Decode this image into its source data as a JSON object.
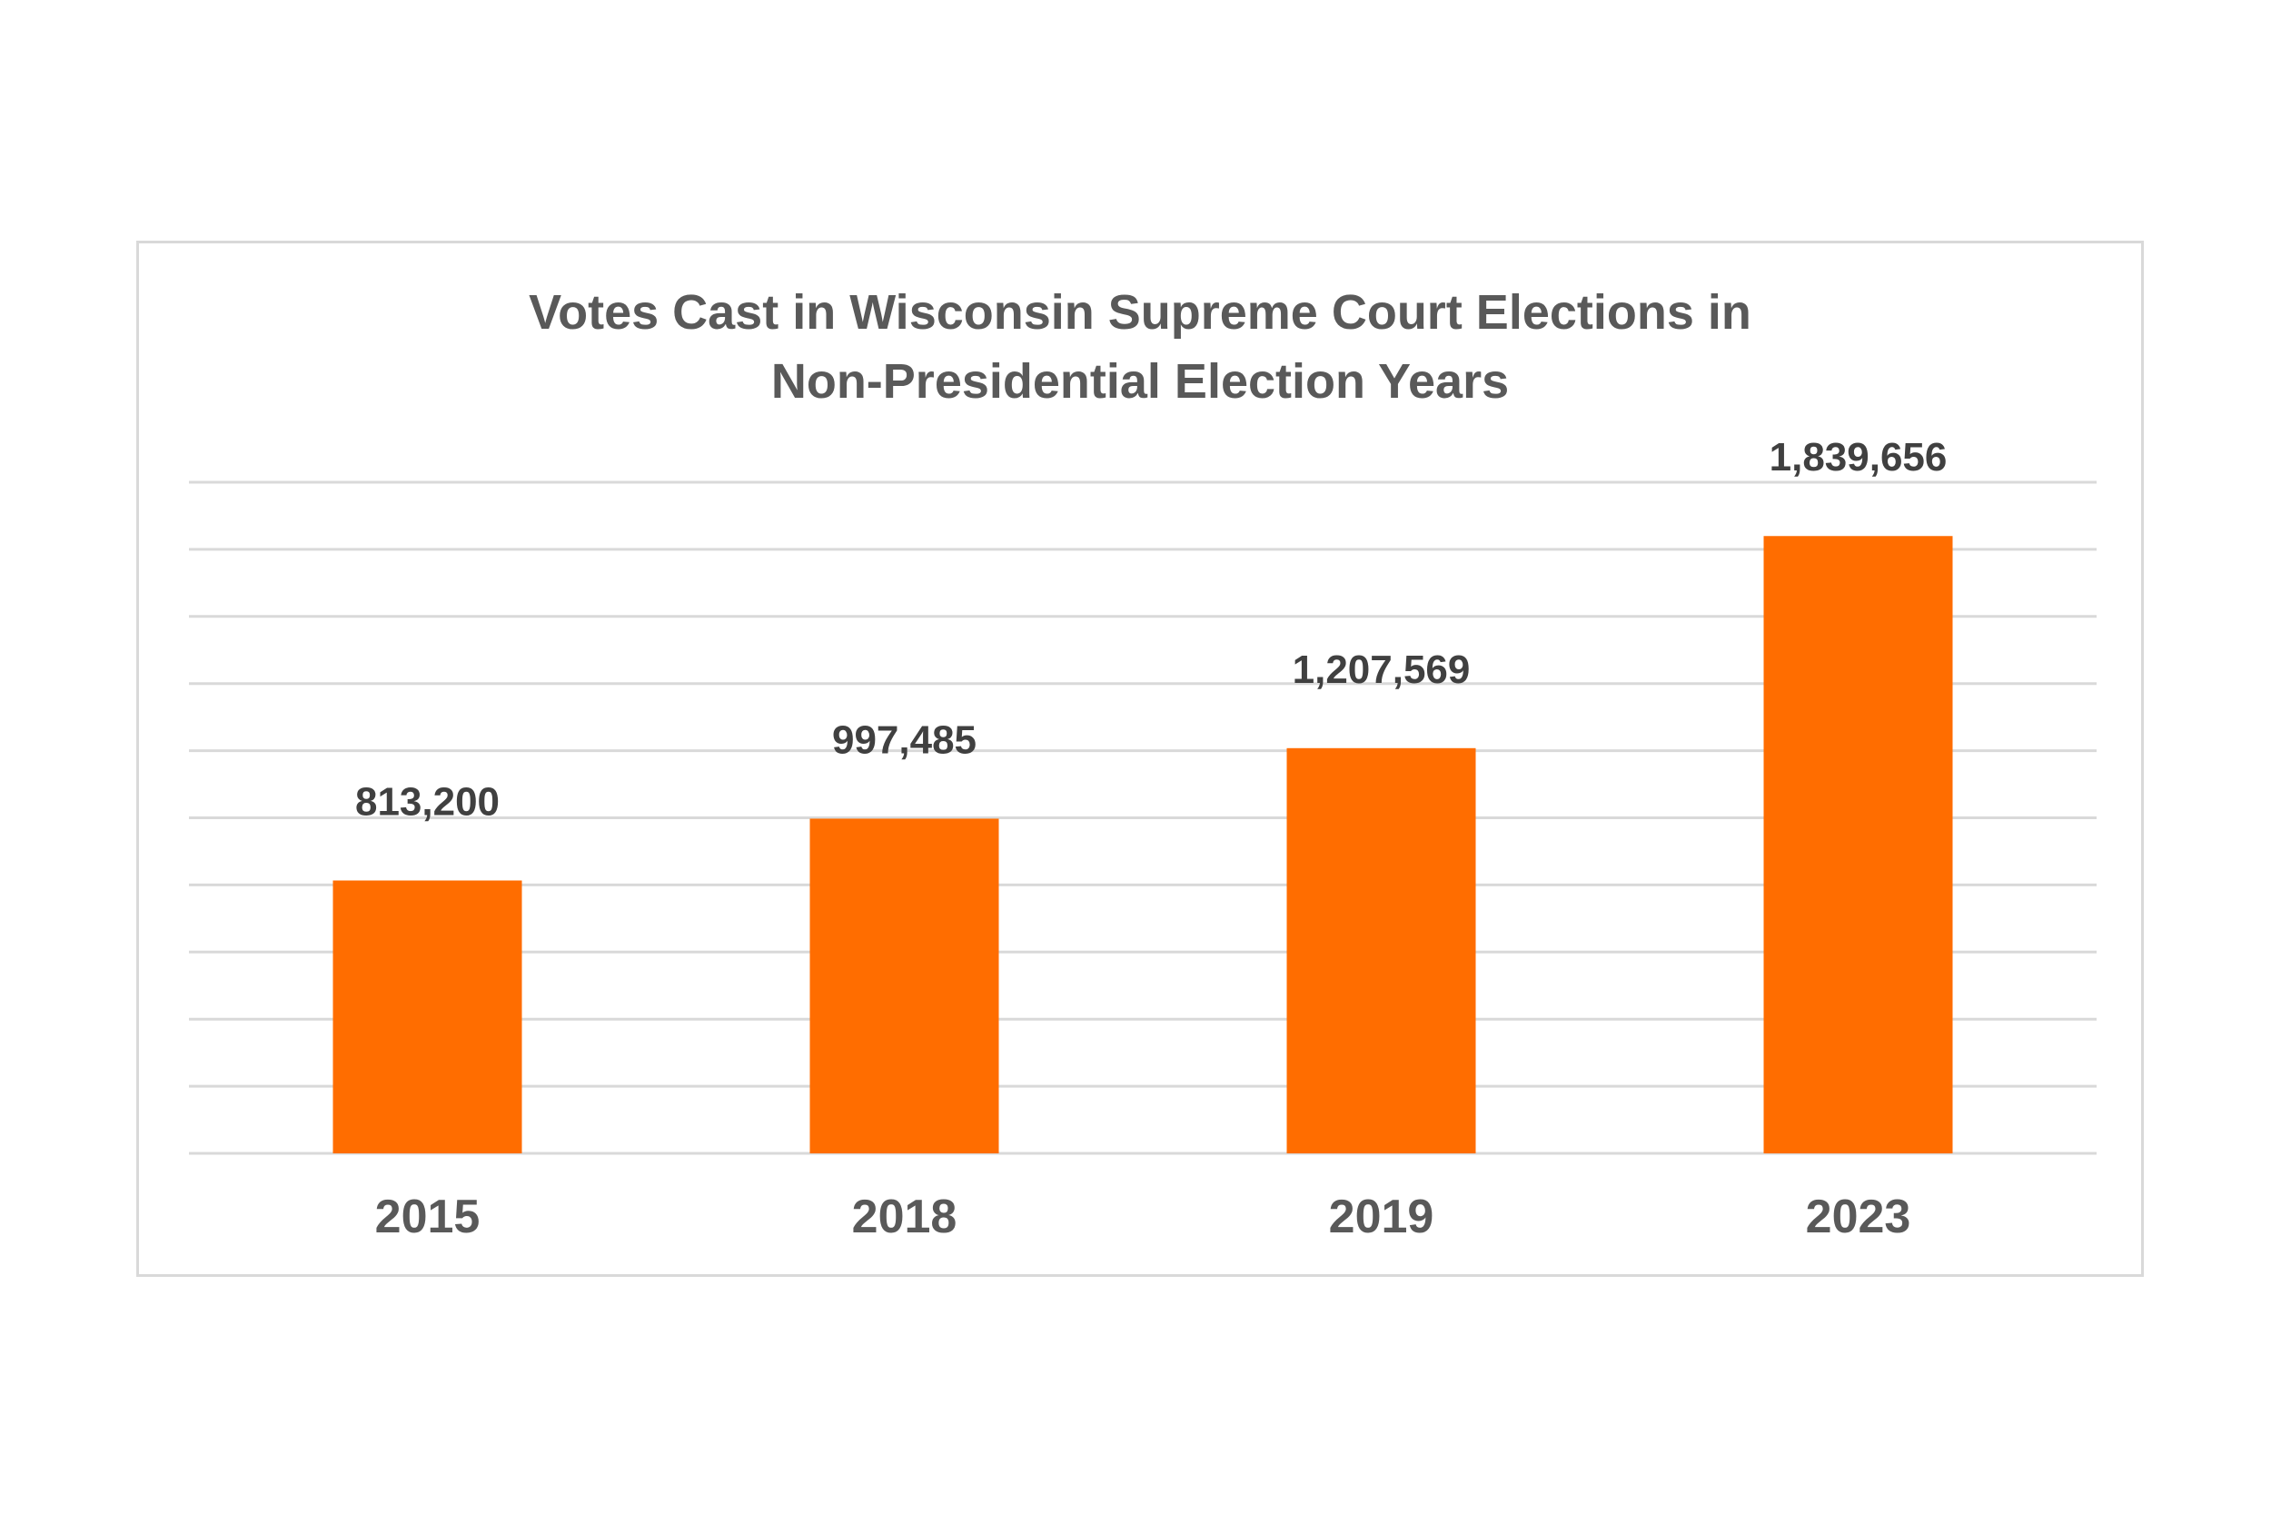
{
  "chart_data": {
    "type": "bar",
    "title_line1": "Votes Cast in Wisconsin Supreme Court Elections in",
    "title_line2": "Non-Presidential Election Years",
    "categories": [
      "2015",
      "2018",
      "2019",
      "2023"
    ],
    "values": [
      813200,
      997485,
      1207569,
      1839656
    ],
    "value_labels": [
      "813,200",
      "997,485",
      "1,207,569",
      "1,839,656"
    ],
    "xlabel": "",
    "ylabel": "",
    "ylim": [
      0,
      2000000
    ],
    "grid": true,
    "gridline_count": 10,
    "legend": "none",
    "bar_color": "#FF6D00",
    "grid_color": "#D9D9D9"
  }
}
